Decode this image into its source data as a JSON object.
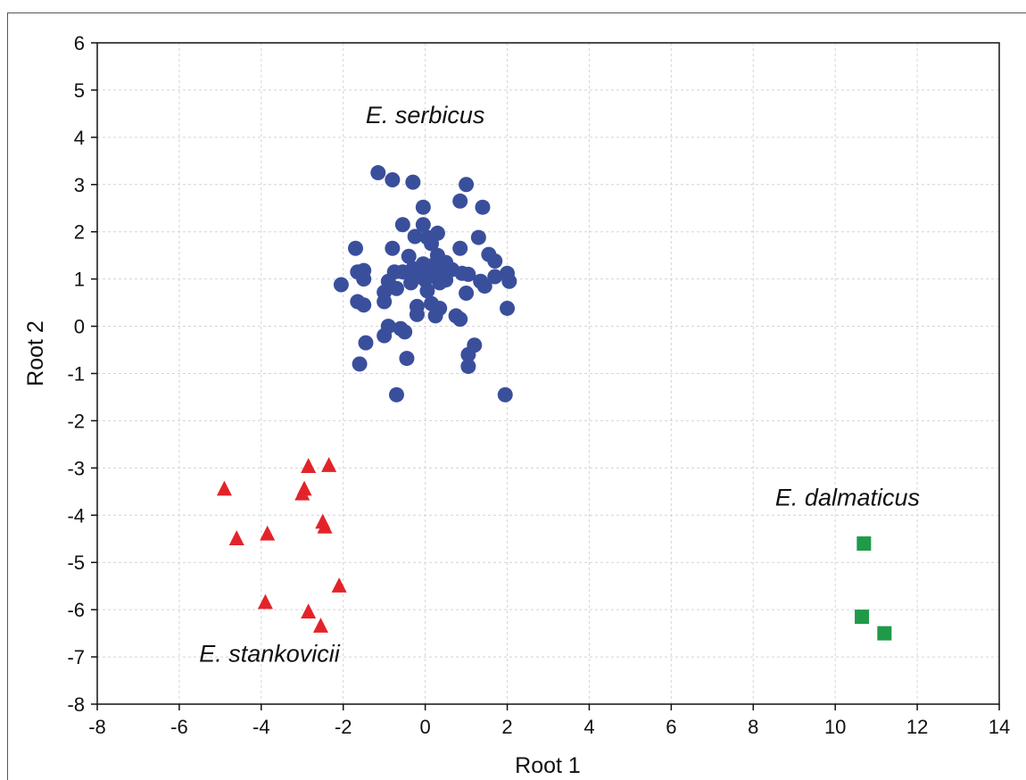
{
  "chart_data": {
    "type": "scatter",
    "xlabel": "Root 1",
    "ylabel": "Root 2",
    "xlim": [
      -8,
      14
    ],
    "ylim": [
      -8,
      6
    ],
    "xticks": [
      -8,
      -6,
      -4,
      -2,
      0,
      2,
      4,
      6,
      8,
      10,
      12,
      14
    ],
    "yticks": [
      -8,
      -7,
      -6,
      -5,
      -4,
      -3,
      -2,
      -1,
      0,
      1,
      2,
      3,
      4,
      5,
      6
    ],
    "grid": true,
    "annotations": [
      {
        "text": "E. serbicus",
        "x": 0,
        "y": 4.3
      },
      {
        "text": "E. stankovicii",
        "x": -3.8,
        "y": -7.1
      },
      {
        "text": "E. dalmaticus",
        "x": 10.3,
        "y": -3.8
      }
    ],
    "series": [
      {
        "label": "E. serbicus",
        "marker": "circle",
        "color": "#3a4f9c",
        "points": [
          [
            -1.15,
            3.25
          ],
          [
            -0.8,
            3.1
          ],
          [
            -0.3,
            3.05
          ],
          [
            1.0,
            3.0
          ],
          [
            0.85,
            2.65
          ],
          [
            1.4,
            2.52
          ],
          [
            -0.05,
            2.52
          ],
          [
            -0.55,
            2.15
          ],
          [
            -0.05,
            2.15
          ],
          [
            0.3,
            1.97
          ],
          [
            -0.25,
            1.9
          ],
          [
            1.3,
            1.88
          ],
          [
            0.05,
            1.88
          ],
          [
            0.15,
            1.75
          ],
          [
            -1.7,
            1.65
          ],
          [
            -0.8,
            1.65
          ],
          [
            0.85,
            1.65
          ],
          [
            1.55,
            1.52
          ],
          [
            -0.4,
            1.48
          ],
          [
            0.3,
            1.5
          ],
          [
            1.7,
            1.38
          ],
          [
            0.5,
            1.35
          ],
          [
            -0.05,
            1.32
          ],
          [
            0.15,
            1.28
          ],
          [
            -0.3,
            1.22
          ],
          [
            0.4,
            1.22
          ],
          [
            0.65,
            1.2
          ],
          [
            -1.5,
            1.18
          ],
          [
            -1.65,
            1.15
          ],
          [
            -0.75,
            1.15
          ],
          [
            -0.55,
            1.15
          ],
          [
            0.1,
            1.12
          ],
          [
            0.9,
            1.12
          ],
          [
            1.05,
            1.1
          ],
          [
            2.0,
            1.12
          ],
          [
            1.7,
            1.05
          ],
          [
            -0.2,
            1.05
          ],
          [
            0.25,
            1.05
          ],
          [
            -1.5,
            1.0
          ],
          [
            0.0,
            0.98
          ],
          [
            0.5,
            0.98
          ],
          [
            1.35,
            0.95
          ],
          [
            2.05,
            0.95
          ],
          [
            -0.9,
            0.95
          ],
          [
            0.35,
            0.92
          ],
          [
            -0.35,
            0.92
          ],
          [
            -2.05,
            0.88
          ],
          [
            1.45,
            0.85
          ],
          [
            -0.7,
            0.8
          ],
          [
            0.05,
            0.75
          ],
          [
            -1.0,
            0.72
          ],
          [
            1.0,
            0.7
          ],
          [
            -1.65,
            0.52
          ],
          [
            -1.0,
            0.52
          ],
          [
            0.15,
            0.48
          ],
          [
            -1.5,
            0.45
          ],
          [
            -0.2,
            0.42
          ],
          [
            0.35,
            0.38
          ],
          [
            2.0,
            0.38
          ],
          [
            -0.2,
            0.25
          ],
          [
            0.25,
            0.22
          ],
          [
            0.75,
            0.22
          ],
          [
            0.85,
            0.15
          ],
          [
            -0.9,
            0.0
          ],
          [
            -0.6,
            -0.05
          ],
          [
            -0.5,
            -0.12
          ],
          [
            -1.0,
            -0.2
          ],
          [
            -1.45,
            -0.35
          ],
          [
            1.2,
            -0.4
          ],
          [
            1.05,
            -0.6
          ],
          [
            -0.45,
            -0.68
          ],
          [
            -1.6,
            -0.8
          ],
          [
            1.05,
            -0.85
          ],
          [
            -0.7,
            -1.45
          ],
          [
            1.95,
            -1.45
          ]
        ]
      },
      {
        "label": "E. stankovicii",
        "marker": "triangle",
        "color": "#e3232a",
        "points": [
          [
            -4.9,
            -3.45
          ],
          [
            -2.85,
            -2.97
          ],
          [
            -2.35,
            -2.95
          ],
          [
            -2.95,
            -3.45
          ],
          [
            -3.0,
            -3.55
          ],
          [
            -2.5,
            -4.15
          ],
          [
            -2.45,
            -4.25
          ],
          [
            -3.85,
            -4.4
          ],
          [
            -4.6,
            -4.5
          ],
          [
            -2.1,
            -5.5
          ],
          [
            -3.9,
            -5.85
          ],
          [
            -2.85,
            -6.05
          ],
          [
            -2.55,
            -6.35
          ]
        ]
      },
      {
        "label": "E. dalmaticus",
        "marker": "square",
        "color": "#1e9a48",
        "points": [
          [
            10.7,
            -4.6
          ],
          [
            10.65,
            -6.15
          ],
          [
            11.2,
            -6.5
          ]
        ]
      }
    ]
  }
}
